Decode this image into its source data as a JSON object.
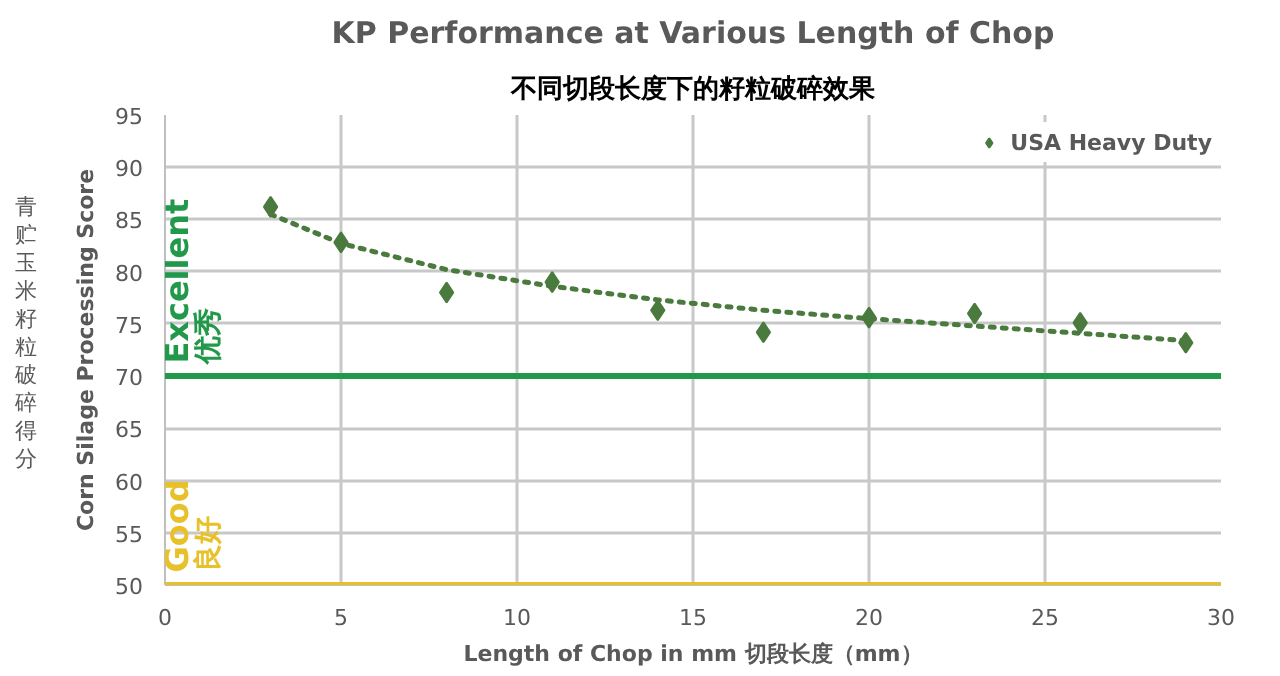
{
  "chart_data": {
    "type": "scatter",
    "title": "KP Performance at Various Length of Chop",
    "subtitle": "不同切段长度下的籽粒破碎效果",
    "xlabel": "Length of Chop in mm 切段长度（mm）",
    "ylabel": "Corn Silage Processing Score",
    "annotations": [
      "青贮玉米籽粒破碎得分"
    ],
    "series": [
      {
        "name": "USA Heavy Duty",
        "color": "#4a7a3e",
        "marker": "diamond",
        "x": [
          3,
          5,
          8,
          11,
          14,
          17,
          20,
          23,
          26,
          29
        ],
        "values": [
          86.2,
          82.8,
          78,
          79,
          76.3,
          74.2,
          75.6,
          76,
          75.1,
          73.2
        ]
      },
      {
        "type": "line",
        "color": "#4a7a3e",
        "line_style": "dotted",
        "x": [
          3,
          5,
          8,
          11,
          14,
          17,
          20,
          23,
          26,
          29
        ],
        "values": [
          85.5,
          82.7,
          80.2,
          78.6,
          77.3,
          76.3,
          75.5,
          74.8,
          74.1,
          73.4
        ]
      }
    ],
    "ref_lines": [
      {
        "axis": "y",
        "value": 70,
        "label": "Excellent 优秀",
        "color": "#22994a"
      },
      {
        "axis": "y",
        "value": 50,
        "label": "Good 良好",
        "color": "#e8c02a"
      }
    ],
    "xlim": [
      0,
      30
    ],
    "xticks": [
      0,
      5,
      10,
      15,
      20,
      25,
      30
    ],
    "ylim": [
      50,
      95
    ],
    "yticks": [
      50,
      55,
      60,
      65,
      70,
      75,
      80,
      85,
      90,
      95
    ],
    "grid": true,
    "legend": "top right"
  }
}
